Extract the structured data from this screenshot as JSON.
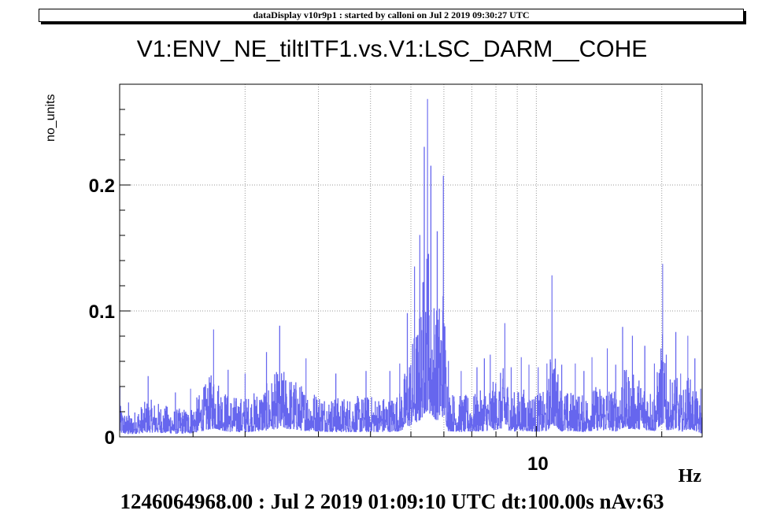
{
  "header": {
    "banner": "dataDisplay v10r9p1 : started by calloni on Jul  2 2019 09:30:27 UTC"
  },
  "footer": {
    "text": "1246064968.00 : Jul  2 2019 01:09:10 UTC dt:100.00s nAv:63"
  },
  "colors": {
    "line": "#6666ee",
    "grid": "#999999",
    "axis": "#000000"
  },
  "chart_data": {
    "type": "line",
    "title": "V1:ENV_NE_tiltITF1.vs.V1:LSC_DARM__COHE",
    "xlabel": "Hz",
    "ylabel": "no_units",
    "xscale": "log",
    "xlim": [
      1,
      25
    ],
    "ylim": [
      0,
      0.28
    ],
    "xticks": [
      {
        "value": 10,
        "label": "10"
      }
    ],
    "yticks": [
      {
        "value": 0,
        "label": "0"
      },
      {
        "value": 0.1,
        "label": "0.1"
      },
      {
        "value": 0.2,
        "label": "0.2"
      }
    ],
    "grid": true,
    "series": [
      {
        "peaks": [
          [
            1.0,
            0.04
          ],
          [
            1.05,
            0.027
          ],
          [
            1.17,
            0.048
          ],
          [
            1.36,
            0.035
          ],
          [
            1.48,
            0.038
          ],
          [
            1.68,
            0.085
          ],
          [
            1.82,
            0.053
          ],
          [
            2.0,
            0.05
          ],
          [
            2.25,
            0.067
          ],
          [
            2.42,
            0.088
          ],
          [
            2.8,
            0.062
          ],
          [
            3.3,
            0.05
          ],
          [
            3.9,
            0.052
          ],
          [
            4.45,
            0.052
          ],
          [
            4.7,
            0.058
          ],
          [
            4.9,
            0.098
          ],
          [
            5.1,
            0.135
          ],
          [
            5.25,
            0.16
          ],
          [
            5.38,
            0.23
          ],
          [
            5.48,
            0.268
          ],
          [
            5.58,
            0.215
          ],
          [
            5.78,
            0.163
          ],
          [
            5.98,
            0.207
          ],
          [
            6.15,
            0.06
          ],
          [
            6.6,
            0.052
          ],
          [
            7.2,
            0.055
          ],
          [
            7.5,
            0.062
          ],
          [
            7.75,
            0.065
          ],
          [
            8.4,
            0.09
          ],
          [
            8.7,
            0.055
          ],
          [
            9.2,
            0.063
          ],
          [
            9.6,
            0.057
          ],
          [
            10.1,
            0.055
          ],
          [
            10.6,
            0.058
          ],
          [
            10.9,
            0.128
          ],
          [
            11.5,
            0.057
          ],
          [
            12.4,
            0.058
          ],
          [
            13.0,
            0.052
          ],
          [
            13.6,
            0.063
          ],
          [
            14.8,
            0.07
          ],
          [
            15.5,
            0.057
          ],
          [
            16.1,
            0.087
          ],
          [
            17.0,
            0.08
          ],
          [
            18.2,
            0.072
          ],
          [
            19.2,
            0.058
          ],
          [
            20.1,
            0.137
          ],
          [
            20.5,
            0.065
          ],
          [
            21.6,
            0.083
          ],
          [
            22.2,
            0.05
          ],
          [
            23.1,
            0.08
          ],
          [
            24.0,
            0.062
          ],
          [
            24.8,
            0.038
          ]
        ]
      }
    ]
  }
}
